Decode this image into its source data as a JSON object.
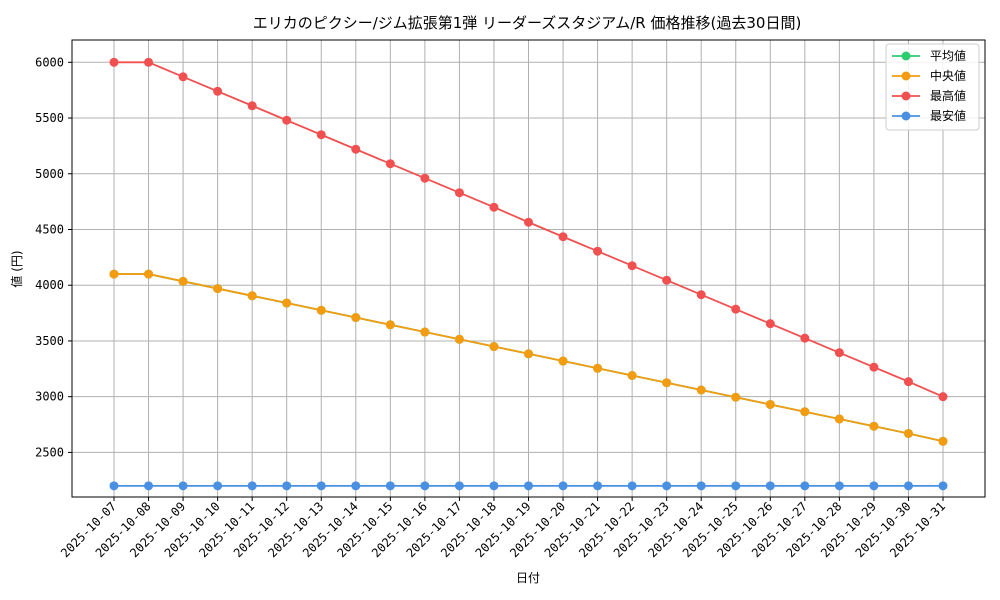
{
  "chart_data": {
    "type": "line",
    "title": "エリカのピクシー/ジム拡張第1弾 リーダーズスタジアム/R 価格推移(過去30日間)",
    "xlabel": "日付",
    "ylabel": "値 (円)",
    "ylim": [
      2100,
      6200
    ],
    "yticks": [
      2500,
      3000,
      3500,
      4000,
      4500,
      5000,
      5500,
      6000
    ],
    "grid": true,
    "legend_position": "top-right",
    "categories": [
      "2025-10-07",
      "2025-10-08",
      "2025-10-09",
      "2025-10-10",
      "2025-10-11",
      "2025-10-12",
      "2025-10-13",
      "2025-10-14",
      "2025-10-15",
      "2025-10-16",
      "2025-10-17",
      "2025-10-18",
      "2025-10-19",
      "2025-10-20",
      "2025-10-21",
      "2025-10-22",
      "2025-10-23",
      "2025-10-24",
      "2025-10-25",
      "2025-10-26",
      "2025-10-27",
      "2025-10-28",
      "2025-10-29",
      "2025-10-30",
      "2025-10-31"
    ],
    "series": [
      {
        "name": "平均値",
        "color": "#2ecc71",
        "values": [
          4100,
          4100,
          4035,
          3970,
          3905,
          3840,
          3775,
          3710,
          3645,
          3580,
          3515,
          3450,
          3385,
          3320,
          3255,
          3190,
          3125,
          3060,
          2995,
          2930,
          2865,
          2800,
          2735,
          2670,
          2600
        ]
      },
      {
        "name": "中央値",
        "color": "#f39c12",
        "values": [
          4100,
          4100,
          4035,
          3970,
          3905,
          3840,
          3775,
          3710,
          3645,
          3580,
          3515,
          3450,
          3385,
          3320,
          3255,
          3190,
          3125,
          3060,
          2995,
          2930,
          2865,
          2800,
          2735,
          2670,
          2600
        ]
      },
      {
        "name": "最高値",
        "color": "#f05050",
        "values": [
          6000,
          6000,
          5870,
          5740,
          5610,
          5480,
          5350,
          5220,
          5090,
          4960,
          4830,
          4700,
          4565,
          4435,
          4305,
          4175,
          4045,
          3915,
          3785,
          3655,
          3525,
          3395,
          3265,
          3135,
          3000
        ]
      },
      {
        "name": "最安値",
        "color": "#4a90e2",
        "values": [
          2200,
          2200,
          2200,
          2200,
          2200,
          2200,
          2200,
          2200,
          2200,
          2200,
          2200,
          2200,
          2200,
          2200,
          2200,
          2200,
          2200,
          2200,
          2200,
          2200,
          2200,
          2200,
          2200,
          2200,
          2200
        ]
      }
    ]
  }
}
